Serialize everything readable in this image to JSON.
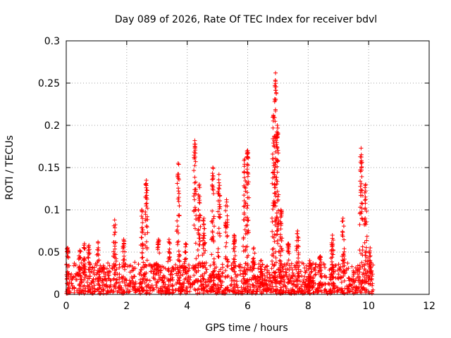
{
  "chart_data": {
    "type": "scatter",
    "title": "Day 089 of 2026, Rate Of TEC Index for receiver bdvl",
    "xlabel": "GPS time / hours",
    "ylabel": "ROTI / TECUs",
    "xlim": [
      0,
      12
    ],
    "ylim": [
      0,
      0.3
    ],
    "xticks": [
      "0",
      "2",
      "4",
      "6",
      "8",
      "10",
      "12"
    ],
    "yticks": [
      "0",
      "0.05",
      "0.1",
      "0.15",
      "0.2",
      "0.25",
      "0.3"
    ],
    "grid": true,
    "legend": "none",
    "marker": "+",
    "color": "#ff0000",
    "baseline": {
      "x_start": 0.0,
      "x_end": 10.15,
      "typical_max": 0.035
    },
    "peaks": [
      {
        "x": 0.05,
        "y": 0.055
      },
      {
        "x": 0.45,
        "y": 0.052
      },
      {
        "x": 0.6,
        "y": 0.06
      },
      {
        "x": 0.75,
        "y": 0.058
      },
      {
        "x": 1.05,
        "y": 0.062
      },
      {
        "x": 1.6,
        "y": 0.088
      },
      {
        "x": 1.9,
        "y": 0.065
      },
      {
        "x": 2.5,
        "y": 0.1
      },
      {
        "x": 2.65,
        "y": 0.135
      },
      {
        "x": 3.05,
        "y": 0.065
      },
      {
        "x": 3.4,
        "y": 0.065
      },
      {
        "x": 3.7,
        "y": 0.155
      },
      {
        "x": 3.95,
        "y": 0.06
      },
      {
        "x": 4.25,
        "y": 0.182
      },
      {
        "x": 4.4,
        "y": 0.13
      },
      {
        "x": 4.55,
        "y": 0.09
      },
      {
        "x": 4.85,
        "y": 0.15
      },
      {
        "x": 5.05,
        "y": 0.142
      },
      {
        "x": 5.3,
        "y": 0.112
      },
      {
        "x": 5.55,
        "y": 0.07
      },
      {
        "x": 5.9,
        "y": 0.16
      },
      {
        "x": 6.0,
        "y": 0.17
      },
      {
        "x": 6.2,
        "y": 0.055
      },
      {
        "x": 6.45,
        "y": 0.04
      },
      {
        "x": 6.85,
        "y": 0.212
      },
      {
        "x": 6.92,
        "y": 0.262
      },
      {
        "x": 6.98,
        "y": 0.2
      },
      {
        "x": 7.1,
        "y": 0.1
      },
      {
        "x": 7.35,
        "y": 0.06
      },
      {
        "x": 7.65,
        "y": 0.075
      },
      {
        "x": 8.05,
        "y": 0.04
      },
      {
        "x": 8.4,
        "y": 0.045
      },
      {
        "x": 8.8,
        "y": 0.07
      },
      {
        "x": 9.15,
        "y": 0.09
      },
      {
        "x": 9.75,
        "y": 0.173
      },
      {
        "x": 9.9,
        "y": 0.13
      },
      {
        "x": 10.05,
        "y": 0.055
      }
    ]
  }
}
